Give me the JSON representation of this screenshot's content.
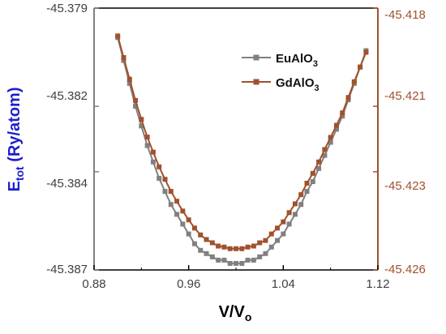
{
  "chart_data": {
    "type": "line",
    "x": [
      0.9,
      0.905,
      0.91,
      0.915,
      0.92,
      0.925,
      0.93,
      0.935,
      0.94,
      0.945,
      0.95,
      0.955,
      0.96,
      0.965,
      0.97,
      0.975,
      0.98,
      0.985,
      0.99,
      0.995,
      1.0,
      1.005,
      1.01,
      1.015,
      1.02,
      1.025,
      1.03,
      1.035,
      1.04,
      1.045,
      1.05,
      1.055,
      1.06,
      1.065,
      1.07,
      1.075,
      1.08,
      1.085,
      1.09,
      1.095,
      1.1,
      1.105,
      1.11
    ],
    "series": [
      {
        "name": "EuAlO3",
        "color": "#808080",
        "values": [
          -45.3799,
          -45.3806,
          -45.3813,
          -45.382,
          -45.3826,
          -45.3832,
          -45.3837,
          -45.3842,
          -45.3846,
          -45.385,
          -45.3853,
          -45.3856,
          -45.3859,
          -45.3862,
          -45.3864,
          -45.3865,
          -45.3866,
          -45.3867,
          -45.3867,
          -45.3868,
          -45.3868,
          -45.3868,
          -45.3867,
          -45.3867,
          -45.3866,
          -45.3865,
          -45.3863,
          -45.3861,
          -45.3859,
          -45.3856,
          -45.3853,
          -45.385,
          -45.3846,
          -45.3843,
          -45.3839,
          -45.3835,
          -45.3831,
          -45.3827,
          -45.3823,
          -45.3818,
          -45.3813,
          -45.3808,
          -45.3803
        ]
      },
      {
        "name": "GdAlO3",
        "color": "#a0522d",
        "values": [
          -45.41885,
          -45.41951,
          -45.42017,
          -45.42082,
          -45.4214,
          -45.42194,
          -45.4224,
          -45.42285,
          -45.42323,
          -45.4236,
          -45.4239,
          -45.4242,
          -45.42447,
          -45.42472,
          -45.42493,
          -45.42507,
          -45.42517,
          -45.42527,
          -45.4253,
          -45.42535,
          -45.42535,
          -45.42535,
          -45.4253,
          -45.42527,
          -45.42517,
          -45.4251,
          -45.4249,
          -45.42472,
          -45.42453,
          -45.42425,
          -45.42398,
          -45.4237,
          -45.42335,
          -45.42305,
          -45.4227,
          -45.42232,
          -45.42195,
          -45.42158,
          -45.4212,
          -45.42073,
          -45.42025,
          -45.4198,
          -45.41935
        ]
      }
    ],
    "xlabel": {
      "main": "V/V",
      "sub": "o"
    },
    "ylabel": {
      "main": "E",
      "sub": "tot",
      "rest": " (Ry/atom)"
    },
    "xlim": [
      0.88,
      1.12
    ],
    "ylim_left": [
      -45.387,
      -45.379
    ],
    "ylim_right": [
      -45.426,
      -45.418
    ],
    "xticks": [
      "0.88",
      "0.96",
      "1.04",
      "1.12"
    ],
    "yticks_left": [
      "-45.379",
      "-45.382",
      "-45.384",
      "-45.387"
    ],
    "yticks_right": [
      "-45.418",
      "-45.421",
      "-45.423",
      "-45.426"
    ],
    "legend": {
      "position": "top-right",
      "entries": [
        {
          "main": "EuAlO",
          "sub": "3"
        },
        {
          "main": "GdAlO",
          "sub": "3"
        }
      ]
    },
    "left_axis_color": "#808080",
    "right_axis_color": "#a0522d",
    "grid": false
  }
}
